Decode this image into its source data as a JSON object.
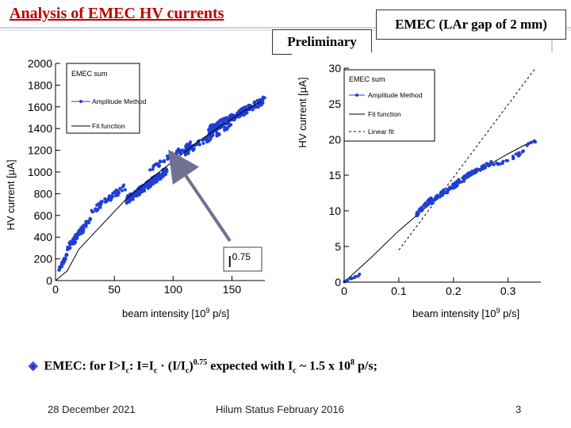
{
  "slide": {
    "title": "Analysis of EMEC HV currents",
    "top_right_label": "EMEC (LAr gap of 2 mm)",
    "preliminary_label": "Preliminary",
    "summary": {
      "bullet": "◈",
      "t1": "EMEC: for I>I",
      "sub_c1": "c",
      "t2": ": I=I",
      "sub_c2": "c",
      "t3": " · (I/I",
      "sub_c3": "c",
      "t4": ")",
      "sup_exp": "0.75",
      "t5": " expected with I",
      "sub_c4": "c",
      "t6": " ~  1.5  x 10",
      "sup_8": "8",
      "t7": " p/s;"
    },
    "footer": {
      "date": "28 December 2021",
      "event": "Hilum Status February 2016",
      "page": "3"
    },
    "colors": {
      "title": "#c00000",
      "points": "#1f3fd6",
      "arrow": "#6e7290"
    }
  },
  "chart_data": [
    {
      "type": "scatter",
      "title": "EMEC sum",
      "xlabel": "beam intensity [10^9 p/s]",
      "ylabel": "HV current [μA]",
      "xlim": [
        0,
        178
      ],
      "ylim": [
        0,
        2000
      ],
      "xticks": [
        "0",
        "50",
        "100",
        "150"
      ],
      "yticks": [
        "0",
        "200",
        "400",
        "600",
        "800",
        "1000",
        "1200",
        "1400",
        "1600",
        "1800",
        "2000"
      ],
      "legend": [
        "EMEC sum",
        "Amplitude Method",
        "Fit function"
      ],
      "annotation": {
        "base": "I",
        "exponent": "0.75"
      },
      "series": [
        {
          "name": "Amplitude Method",
          "clusters": [
            {
              "x": [
                2,
                10
              ],
              "y": [
                60,
                260
              ],
              "n": 30
            },
            {
              "x": [
                10,
                30
              ],
              "y": [
                260,
                600
              ],
              "n": 60
            },
            {
              "x": [
                30,
                60
              ],
              "y": [
                600,
                900
              ],
              "n": 50
            },
            {
              "x": [
                60,
                95
              ],
              "y": [
                700,
                1050
              ],
              "n": 150
            },
            {
              "x": [
                80,
                115
              ],
              "y": [
                1000,
                1280
              ],
              "n": 60
            },
            {
              "x": [
                110,
                150
              ],
              "y": [
                1150,
                1480
              ],
              "n": 80
            },
            {
              "x": [
                130,
                178
              ],
              "y": [
                1350,
                1700
              ],
              "n": 200
            }
          ]
        },
        {
          "name": "Fit function",
          "x": [
            0,
            10,
            20,
            40,
            60,
            80,
            100,
            120,
            140,
            160,
            175
          ],
          "y": [
            0,
            90,
            290,
            520,
            750,
            930,
            1100,
            1270,
            1420,
            1560,
            1650
          ]
        }
      ]
    },
    {
      "type": "scatter",
      "title": "EMEC sum",
      "xlabel": "beam intensity [10^9 p/s]",
      "ylabel": "HV current [μA]",
      "xlim": [
        0,
        0.36
      ],
      "ylim": [
        0,
        30
      ],
      "xticks": [
        "0",
        "0.1",
        "0.2",
        "0.3"
      ],
      "yticks": [
        "0",
        "5",
        "10",
        "15",
        "20",
        "25",
        "30"
      ],
      "legend": [
        "EMEC sum",
        "Amplitude Method",
        "Fit function",
        "Linear fit"
      ],
      "series": [
        {
          "name": "Amplitude Method",
          "clusters": [
            {
              "x": [
                0.0,
                0.03
              ],
              "y": [
                0.0,
                1.2
              ],
              "n": 12
            },
            {
              "x": [
                0.13,
                0.16
              ],
              "y": [
                9.0,
                12.0
              ],
              "n": 40
            },
            {
              "x": [
                0.16,
                0.22
              ],
              "y": [
                11.0,
                15.0
              ],
              "n": 70
            },
            {
              "x": [
                0.22,
                0.27
              ],
              "y": [
                14.5,
                17.0
              ],
              "n": 50
            },
            {
              "x": [
                0.27,
                0.33
              ],
              "y": [
                16.0,
                18.5
              ],
              "n": 20
            },
            {
              "x": [
                0.33,
                0.355
              ],
              "y": [
                19.0,
                20.0
              ],
              "n": 6
            }
          ]
        },
        {
          "name": "Fit function",
          "x": [
            0,
            0.05,
            0.1,
            0.15,
            0.2,
            0.25,
            0.3,
            0.35
          ],
          "y": [
            0,
            3.5,
            7.2,
            10.5,
            13.3,
            15.8,
            18.0,
            20.0
          ]
        },
        {
          "name": "Linear fit",
          "x": [
            0.1,
            0.35
          ],
          "y": [
            4.5,
            30.0
          ]
        }
      ]
    }
  ]
}
